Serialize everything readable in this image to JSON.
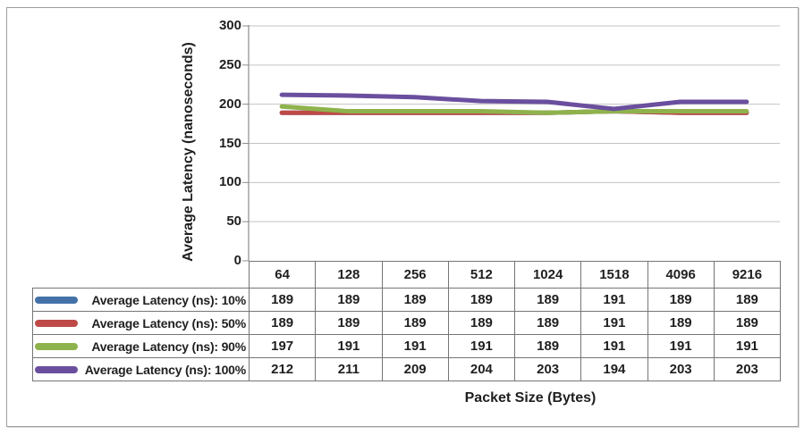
{
  "figure": {
    "background": "#FFFFFF",
    "border_color": "#9E9E9E"
  },
  "chart_data": {
    "type": "line",
    "title": "",
    "xlabel": "Packet Size (Bytes)",
    "ylabel": "Average Latency (nanoseconds)",
    "categories": [
      "64",
      "128",
      "256",
      "512",
      "1024",
      "1518",
      "4096",
      "9216"
    ],
    "series": [
      {
        "name": "Average Latency (ns): 10%",
        "color": "#4472A8",
        "values": [
          189,
          189,
          189,
          189,
          189,
          191,
          189,
          189
        ]
      },
      {
        "name": "Average Latency (ns): 50%",
        "color": "#BE4A47",
        "values": [
          189,
          189,
          189,
          189,
          189,
          191,
          189,
          189
        ]
      },
      {
        "name": "Average Latency (ns): 90%",
        "color": "#8FB34C",
        "values": [
          197,
          191,
          191,
          191,
          189,
          191,
          191,
          191
        ]
      },
      {
        "name": "Average Latency (ns): 100%",
        "color": "#6B4F9E",
        "values": [
          212,
          211,
          209,
          204,
          203,
          194,
          203,
          203
        ]
      }
    ],
    "ylim": [
      0,
      300
    ],
    "yticks": [
      300,
      250,
      200,
      150,
      100,
      50,
      0
    ],
    "grid": "horizontal",
    "gridline_color": "#C3C3C3",
    "axis_color": "#8C8C8C",
    "table_border_color": "#757575",
    "text_color": "#1F1F1F",
    "legend_position": "data-table-left",
    "data_table": true
  }
}
